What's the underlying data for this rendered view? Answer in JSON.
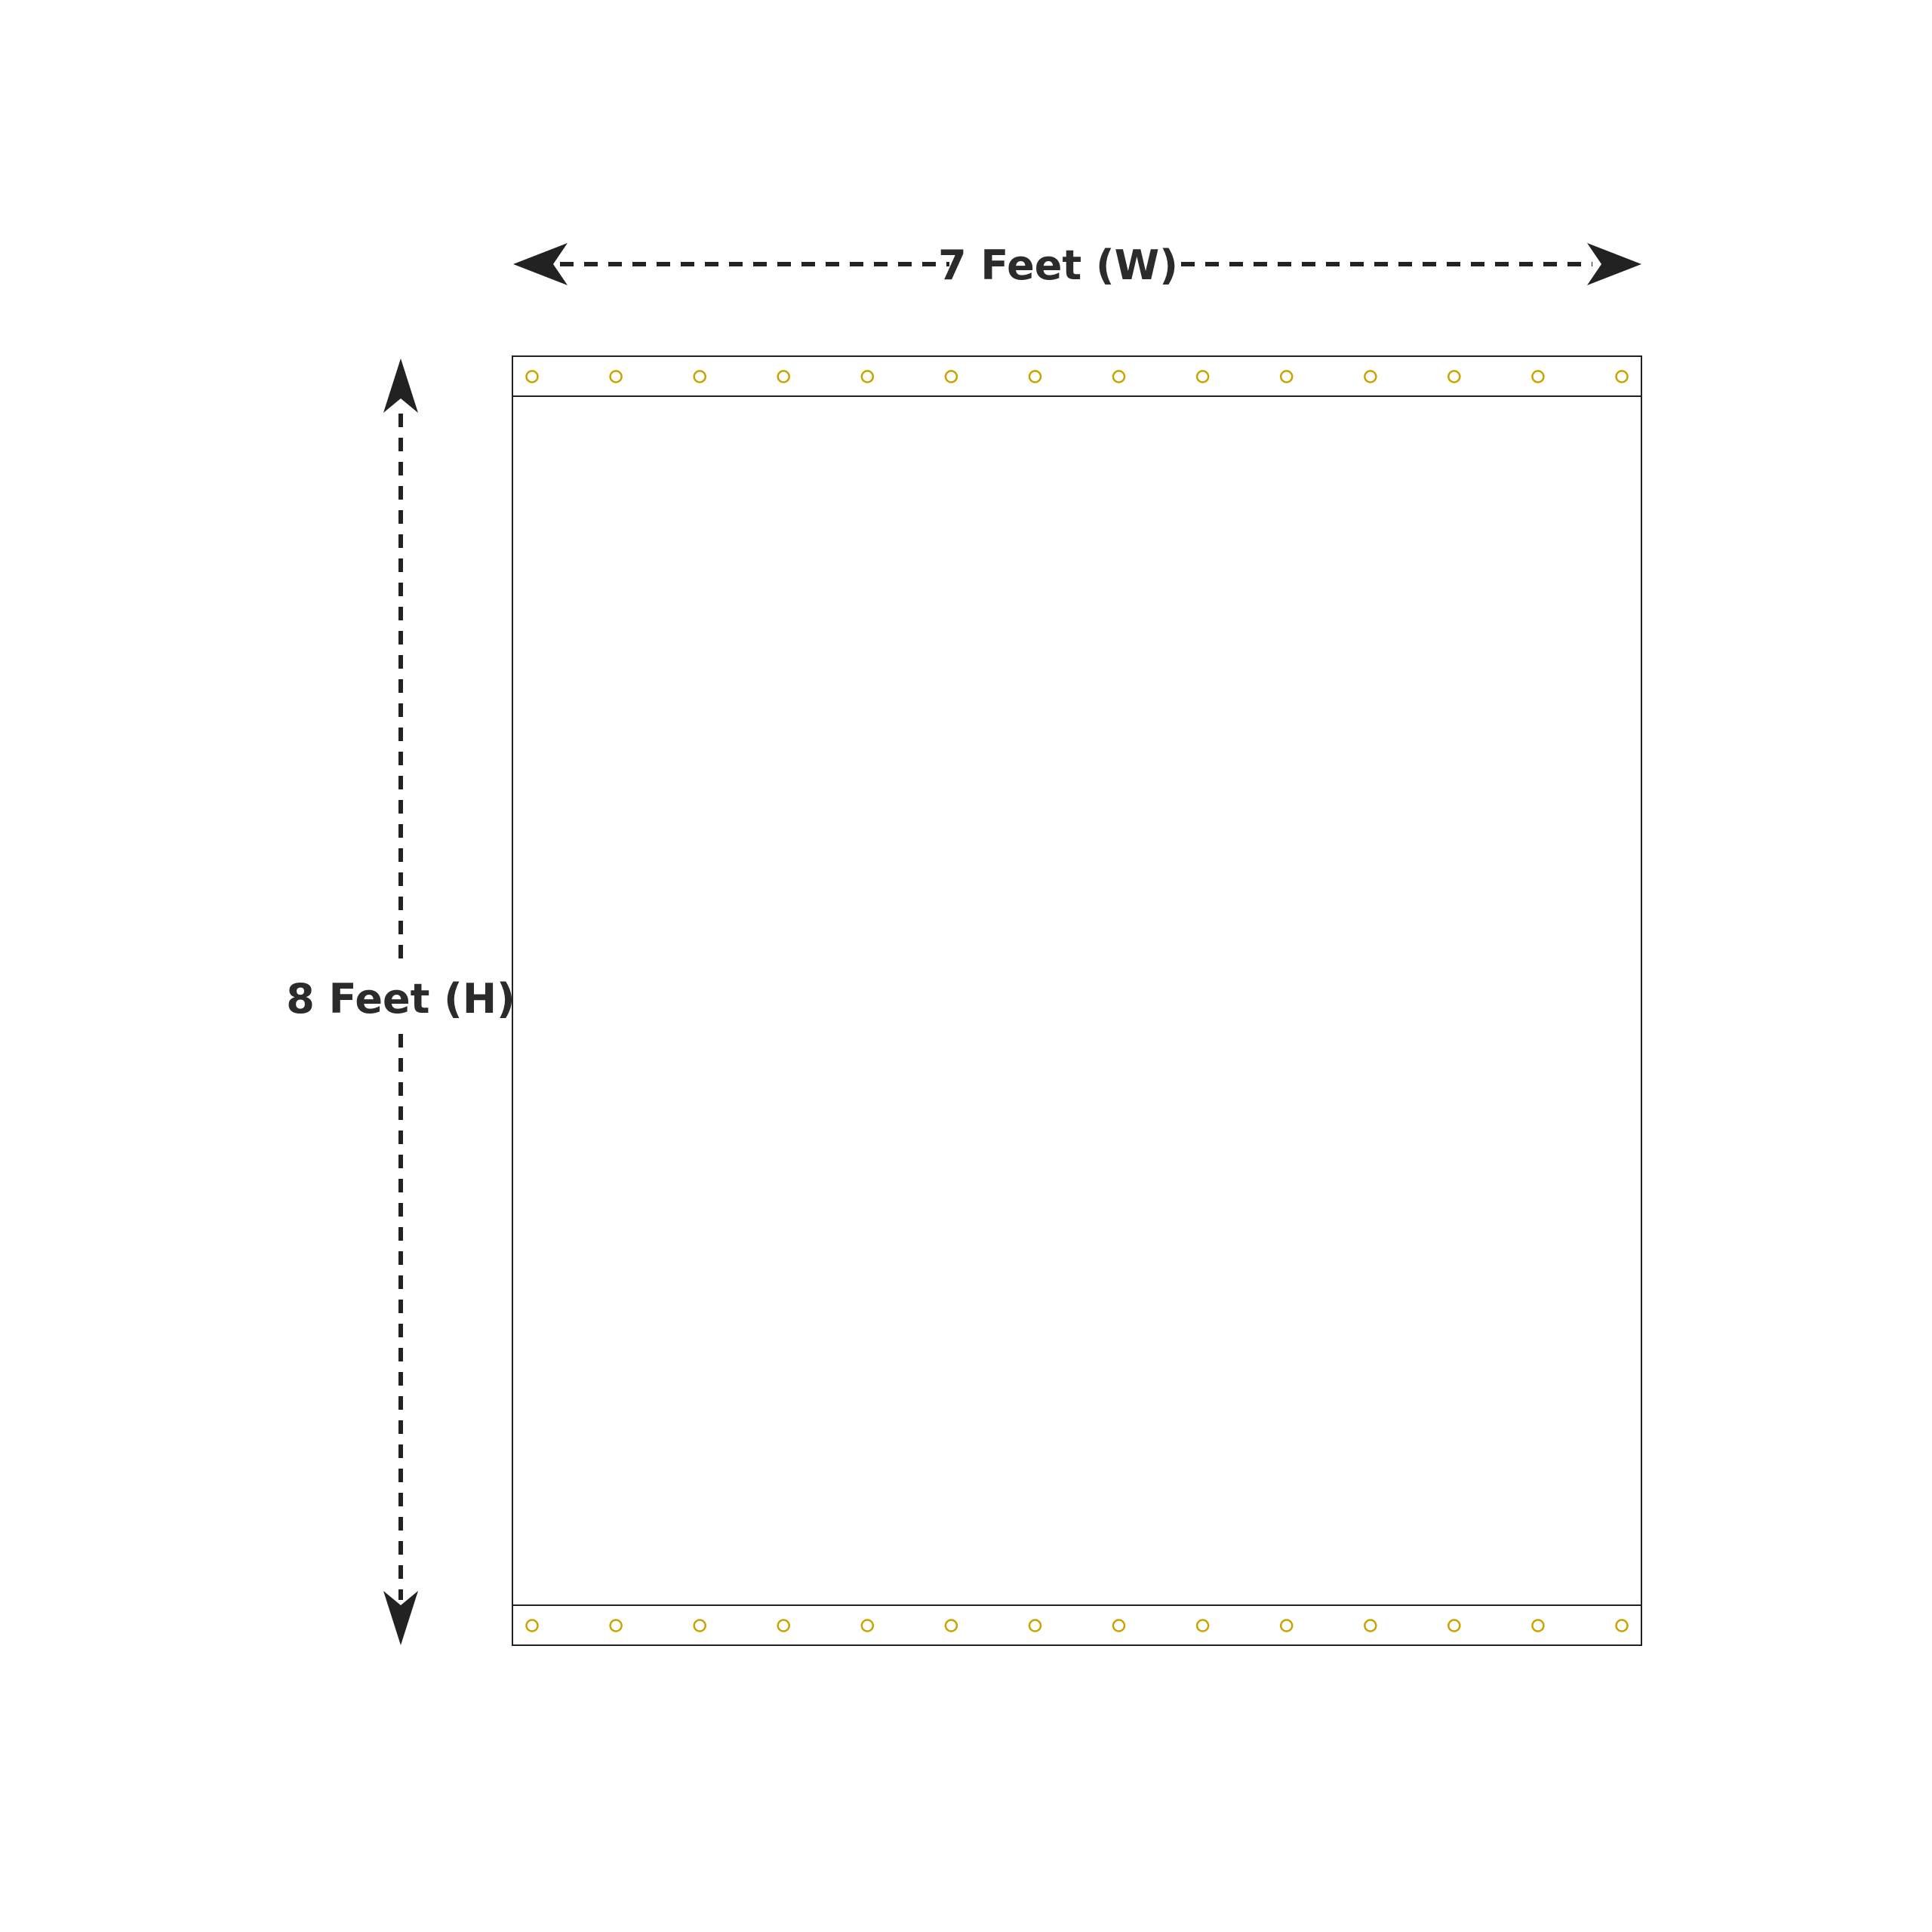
{
  "width_label": "7 Feet (W)",
  "height_label": "8 Feet (H)",
  "grommets": {
    "top_count": 14,
    "bottom_count": 14
  },
  "colors": {
    "line": "#222222",
    "arrow": "#222222",
    "text": "#2b2b2b",
    "grommet": "#c9a300",
    "background": "#ffffff"
  }
}
